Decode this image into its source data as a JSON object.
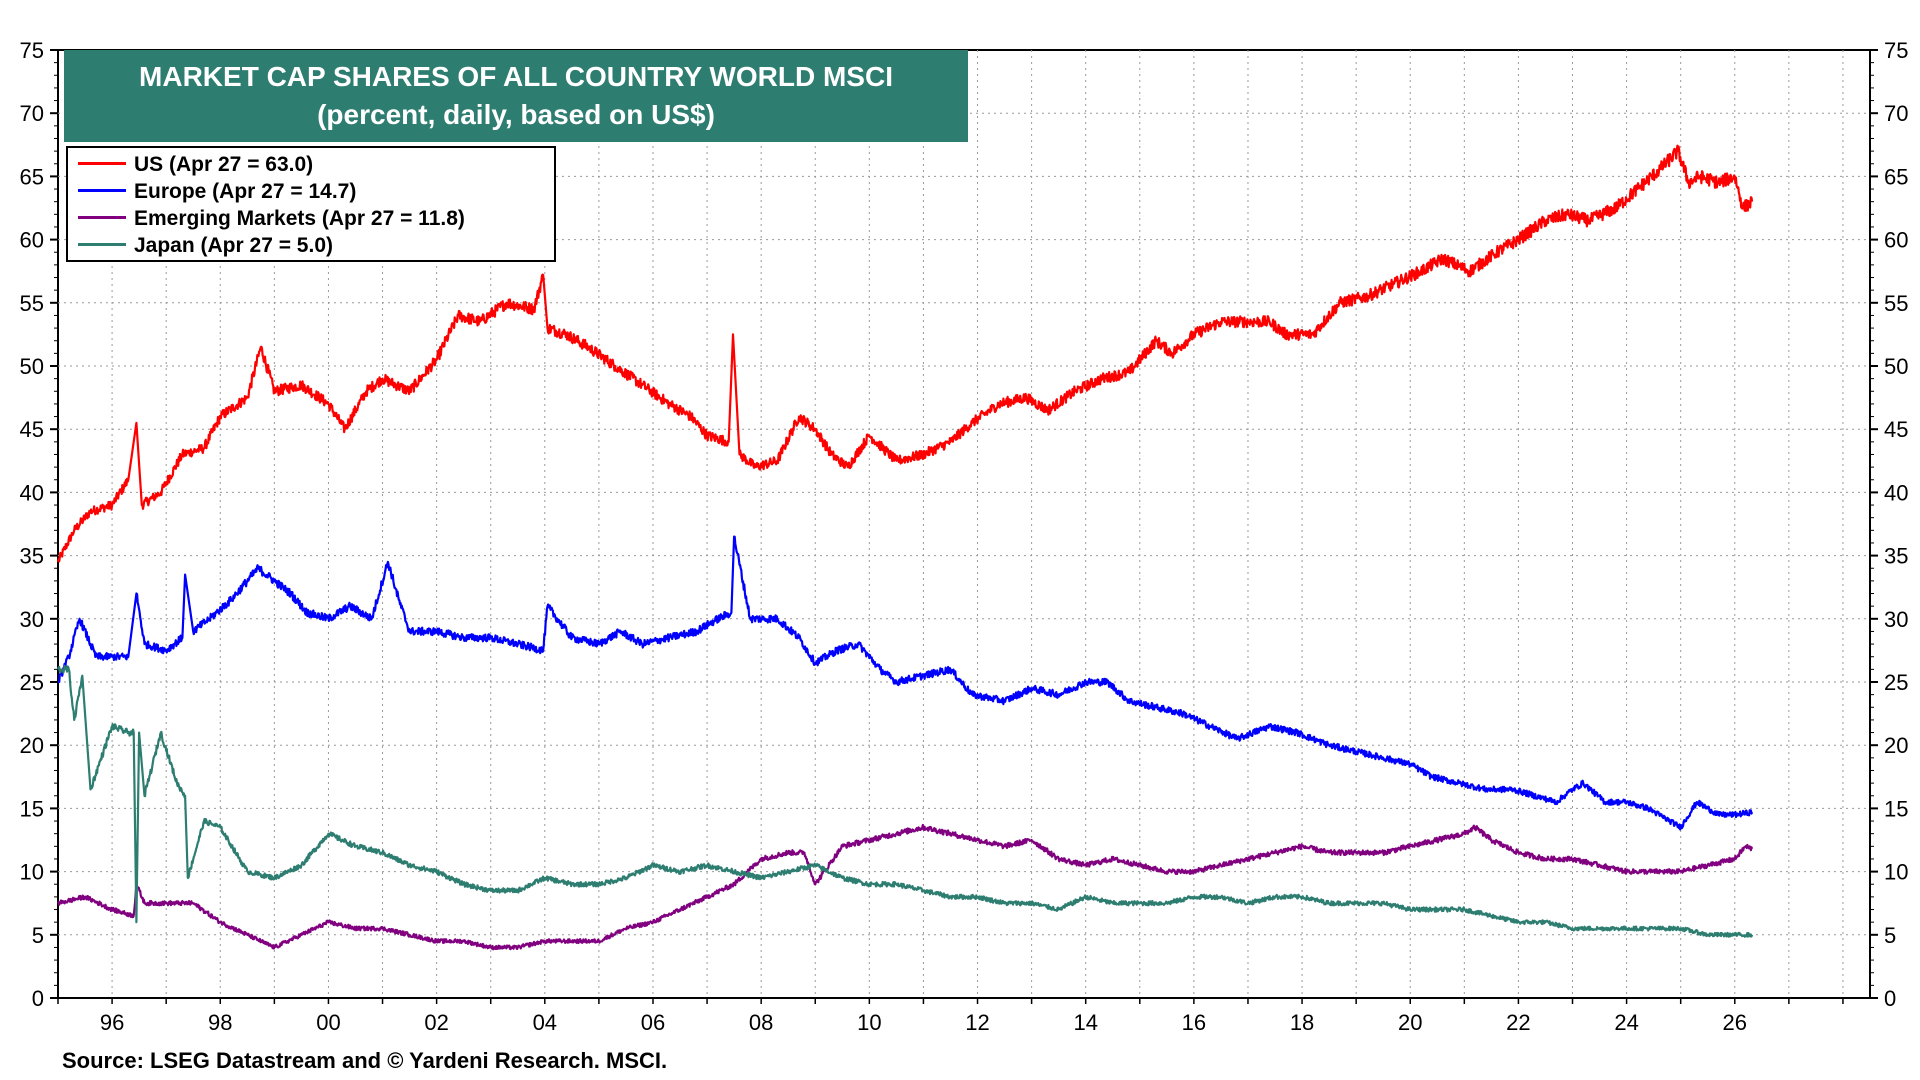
{
  "title": {
    "line1": "MARKET CAP SHARES OF ALL COUNTRY WORLD MSCI",
    "line2": "(percent, daily, based on US$)"
  },
  "source": "Source: LSEG Datastream and © Yardeni Research. MSCI.",
  "chart_data": {
    "type": "line",
    "title": "MARKET CAP SHARES OF ALL COUNTRY WORLD MSCI",
    "subtitle": "(percent, daily, based on US$)",
    "xlabel": "",
    "ylabel": "",
    "xlim": [
      1995.0,
      2028.5
    ],
    "ylim": [
      0,
      75
    ],
    "y_ticks": [
      0,
      5,
      10,
      15,
      20,
      25,
      30,
      35,
      40,
      45,
      50,
      55,
      60,
      65,
      70,
      75
    ],
    "y_tick_labels": [
      "0",
      "5",
      "10",
      "15",
      "20",
      "25",
      "30",
      "35",
      "40",
      "45",
      "50",
      "55",
      "60",
      "65",
      "70",
      "75"
    ],
    "x_ticks": [
      1996,
      1998,
      2000,
      2002,
      2004,
      2006,
      2008,
      2010,
      2012,
      2014,
      2016,
      2018,
      2020,
      2022,
      2024,
      2026
    ],
    "x_tick_labels": [
      "96",
      "98",
      "00",
      "02",
      "04",
      "06",
      "08",
      "10",
      "12",
      "14",
      "16",
      "18",
      "20",
      "22",
      "24",
      "26"
    ],
    "grid": true,
    "legend_position": "top-left",
    "series": [
      {
        "name": "US (Apr 27 = 63.0)",
        "color": "#ff0000",
        "x": [
          1995.0,
          1995.3,
          1995.6,
          1996.0,
          1996.3,
          1996.45,
          1996.55,
          1996.9,
          1997.3,
          1997.7,
          1998.0,
          1998.5,
          1998.75,
          1999.0,
          1999.5,
          2000.0,
          2000.3,
          2000.7,
          2001.0,
          2001.5,
          2002.0,
          2002.4,
          2002.8,
          2003.3,
          2003.8,
          2003.97,
          2004.05,
          2004.4,
          2004.8,
          2005.3,
          2005.8,
          2006.3,
          2006.7,
          2007.0,
          2007.4,
          2007.48,
          2007.6,
          2007.9,
          2008.3,
          2008.7,
          2009.0,
          2009.3,
          2009.6,
          2010.0,
          2010.5,
          2011.0,
          2011.5,
          2011.9,
          2012.4,
          2012.9,
          2013.3,
          2013.8,
          2014.3,
          2014.8,
          2015.3,
          2015.6,
          2016.0,
          2016.5,
          2017.0,
          2017.4,
          2017.7,
          2018.2,
          2018.7,
          2019.2,
          2019.7,
          2020.2,
          2020.6,
          2021.1,
          2021.6,
          2022.0,
          2022.5,
          2022.9,
          2023.3,
          2023.8,
          2024.2,
          2024.6,
          2024.95,
          2025.15,
          2025.35,
          2025.7,
          2026.0,
          2026.15,
          2026.32
        ],
        "values": [
          34.5,
          37.0,
          38.5,
          39.0,
          41.0,
          45.5,
          39.0,
          40.0,
          43.0,
          43.5,
          46.0,
          47.5,
          51.5,
          48.0,
          48.5,
          47.0,
          45.0,
          48.0,
          49.0,
          48.0,
          50.5,
          54.0,
          53.5,
          55.0,
          54.5,
          57.2,
          53.0,
          52.5,
          51.5,
          50.0,
          48.5,
          47.0,
          46.0,
          44.5,
          44.0,
          52.5,
          43.0,
          42.0,
          42.5,
          46.0,
          45.0,
          43.0,
          42.0,
          44.5,
          42.5,
          43.0,
          44.0,
          45.5,
          47.0,
          47.5,
          46.5,
          48.0,
          49.0,
          49.5,
          52.0,
          51.0,
          52.5,
          53.5,
          53.5,
          53.5,
          52.5,
          52.5,
          55.0,
          55.5,
          56.5,
          57.5,
          58.5,
          57.5,
          59.0,
          60.0,
          61.5,
          62.0,
          61.5,
          62.5,
          64.0,
          65.5,
          67.0,
          64.5,
          65.0,
          64.5,
          65.0,
          62.5,
          63.0
        ]
      },
      {
        "name": "Europe (Apr 27 = 14.7)",
        "color": "#0000ff",
        "x": [
          1995.0,
          1995.2,
          1995.4,
          1995.7,
          1996.0,
          1996.3,
          1996.45,
          1996.6,
          1997.0,
          1997.3,
          1997.35,
          1997.5,
          1997.8,
          1998.2,
          1998.7,
          1999.0,
          1999.3,
          1999.6,
          2000.0,
          2000.4,
          2000.8,
          2001.1,
          2001.3,
          2001.5,
          2002.0,
          2002.5,
          2003.0,
          2003.5,
          2003.97,
          2004.05,
          2004.5,
          2005.0,
          2005.4,
          2005.8,
          2006.3,
          2006.8,
          2007.2,
          2007.45,
          2007.5,
          2007.8,
          2008.3,
          2008.7,
          2009.0,
          2009.4,
          2009.8,
          2010.2,
          2010.5,
          2011.0,
          2011.5,
          2011.9,
          2012.5,
          2013.0,
          2013.5,
          2014.0,
          2014.4,
          2014.8,
          2015.3,
          2015.8,
          2016.3,
          2016.8,
          2017.4,
          2017.9,
          2018.5,
          2019.0,
          2019.5,
          2020.0,
          2020.4,
          2020.9,
          2021.4,
          2021.9,
          2022.3,
          2022.7,
          2023.0,
          2023.2,
          2023.6,
          2024.0,
          2024.4,
          2024.8,
          2025.0,
          2025.3,
          2025.7,
          2026.0,
          2026.32
        ],
        "values": [
          25.0,
          27.0,
          30.0,
          27.0,
          27.0,
          27.0,
          32.0,
          28.0,
          27.5,
          28.5,
          33.5,
          29.0,
          30.0,
          31.5,
          34.0,
          33.0,
          32.0,
          30.5,
          30.0,
          31.0,
          30.0,
          34.5,
          31.5,
          29.0,
          29.0,
          28.5,
          28.5,
          28.0,
          27.5,
          31.0,
          28.5,
          28.0,
          29.0,
          28.0,
          28.5,
          29.0,
          30.0,
          30.5,
          36.5,
          30.0,
          30.0,
          28.5,
          26.5,
          27.5,
          28.0,
          26.0,
          25.0,
          25.5,
          26.0,
          24.0,
          23.5,
          24.5,
          24.0,
          25.0,
          25.0,
          23.5,
          23.0,
          22.5,
          21.5,
          20.5,
          21.5,
          21.0,
          20.0,
          19.5,
          19.0,
          18.5,
          17.5,
          17.0,
          16.5,
          16.5,
          16.0,
          15.5,
          16.5,
          17.0,
          15.5,
          15.5,
          15.0,
          14.0,
          13.5,
          15.5,
          14.5,
          14.5,
          14.7
        ]
      },
      {
        "name": "Emerging Markets (Apr 27 = 11.8)",
        "color": "#800080",
        "x": [
          1995.0,
          1995.5,
          1996.0,
          1996.4,
          1996.45,
          1996.6,
          1997.0,
          1997.5,
          1998.0,
          1998.5,
          1999.0,
          1999.5,
          2000.0,
          2000.5,
          2001.0,
          2001.5,
          2002.0,
          2002.5,
          2003.0,
          2003.5,
          2004.0,
          2004.5,
          2005.0,
          2005.5,
          2006.0,
          2006.5,
          2007.0,
          2007.5,
          2008.0,
          2008.5,
          2008.8,
          2009.0,
          2009.5,
          2010.0,
          2010.5,
          2011.0,
          2011.5,
          2012.0,
          2012.5,
          2013.0,
          2013.5,
          2014.0,
          2014.5,
          2015.0,
          2015.5,
          2016.0,
          2016.5,
          2017.0,
          2017.5,
          2018.0,
          2018.5,
          2019.0,
          2019.5,
          2020.0,
          2020.5,
          2021.0,
          2021.2,
          2021.5,
          2022.0,
          2022.5,
          2023.0,
          2023.5,
          2024.0,
          2024.5,
          2025.0,
          2025.5,
          2026.0,
          2026.2,
          2026.32
        ],
        "values": [
          7.5,
          8.0,
          7.0,
          6.5,
          9.0,
          7.5,
          7.5,
          7.5,
          6.0,
          5.0,
          4.0,
          5.0,
          6.0,
          5.5,
          5.5,
          5.0,
          4.5,
          4.5,
          4.0,
          4.0,
          4.5,
          4.5,
          4.5,
          5.5,
          6.0,
          7.0,
          8.0,
          9.0,
          11.0,
          11.5,
          11.5,
          9.0,
          12.0,
          12.5,
          13.0,
          13.5,
          13.0,
          12.5,
          12.0,
          12.5,
          11.0,
          10.5,
          11.0,
          10.5,
          10.0,
          10.0,
          10.5,
          11.0,
          11.5,
          12.0,
          11.5,
          11.5,
          11.5,
          12.0,
          12.5,
          13.0,
          13.5,
          12.5,
          11.5,
          11.0,
          11.0,
          10.5,
          10.0,
          10.0,
          10.0,
          10.5,
          11.0,
          12.0,
          11.8
        ]
      },
      {
        "name": "Japan (Apr 27 = 5.0)",
        "color": "#2e7d71",
        "x": [
          1995.0,
          1995.2,
          1995.3,
          1995.45,
          1995.6,
          1996.0,
          1996.3,
          1996.4,
          1996.45,
          1996.5,
          1996.6,
          1996.9,
          1997.2,
          1997.35,
          1997.4,
          1997.7,
          1998.0,
          1998.5,
          1999.0,
          1999.5,
          2000.0,
          2000.5,
          2001.0,
          2001.5,
          2002.0,
          2002.5,
          2003.0,
          2003.5,
          2004.0,
          2004.5,
          2005.0,
          2005.5,
          2006.0,
          2006.5,
          2007.0,
          2007.5,
          2008.0,
          2008.5,
          2009.0,
          2009.5,
          2010.0,
          2010.5,
          2011.0,
          2011.5,
          2012.0,
          2012.5,
          2013.0,
          2013.5,
          2014.0,
          2014.5,
          2015.0,
          2015.5,
          2016.0,
          2016.5,
          2017.0,
          2017.5,
          2018.0,
          2018.5,
          2019.0,
          2019.5,
          2020.0,
          2020.5,
          2021.0,
          2021.5,
          2022.0,
          2022.5,
          2023.0,
          2023.5,
          2024.0,
          2024.5,
          2025.0,
          2025.5,
          2026.0,
          2026.32
        ],
        "values": [
          26.0,
          26.0,
          22.0,
          25.5,
          16.5,
          21.5,
          21.0,
          21.0,
          6.0,
          21.0,
          16.0,
          21.0,
          17.0,
          16.0,
          9.5,
          14.0,
          13.5,
          10.0,
          9.5,
          10.5,
          13.0,
          12.0,
          11.5,
          10.5,
          10.0,
          9.0,
          8.5,
          8.5,
          9.5,
          9.0,
          9.0,
          9.5,
          10.5,
          10.0,
          10.5,
          10.0,
          9.5,
          10.0,
          10.5,
          9.5,
          9.0,
          9.0,
          8.5,
          8.0,
          8.0,
          7.5,
          7.5,
          7.0,
          8.0,
          7.5,
          7.5,
          7.5,
          8.0,
          8.0,
          7.5,
          8.0,
          8.0,
          7.5,
          7.5,
          7.5,
          7.0,
          7.0,
          7.0,
          6.5,
          6.0,
          6.0,
          5.5,
          5.5,
          5.5,
          5.5,
          5.5,
          5.0,
          5.0,
          5.0
        ]
      }
    ]
  }
}
